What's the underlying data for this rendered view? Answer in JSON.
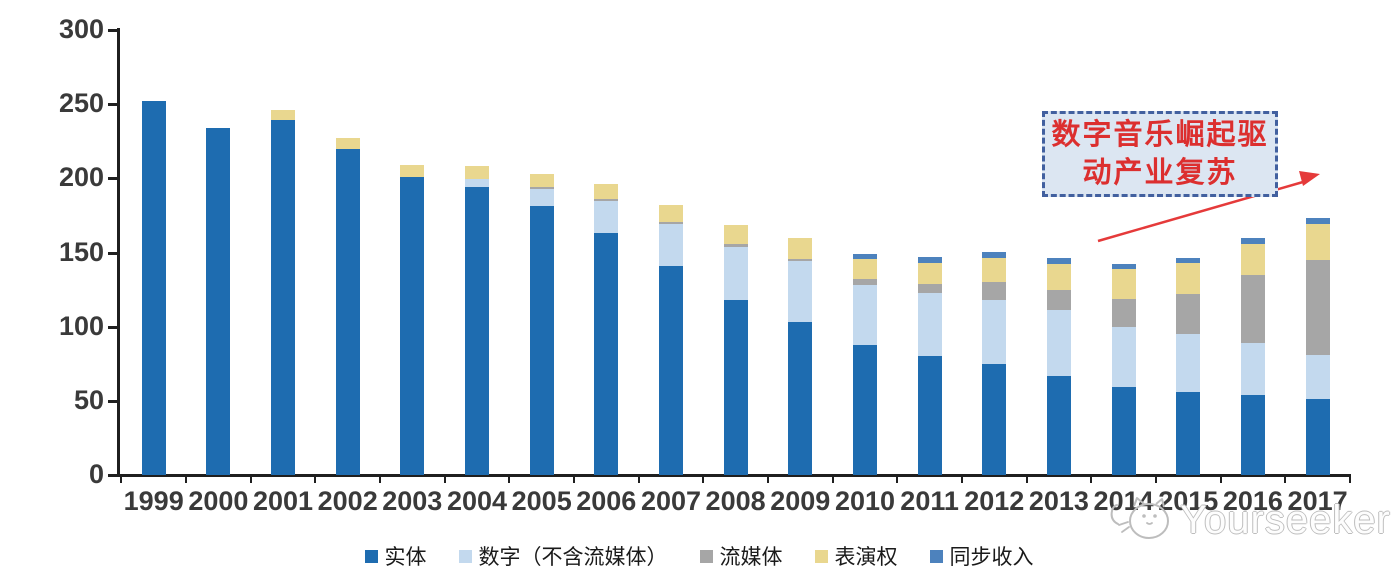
{
  "chart_data": {
    "type": "bar",
    "stacked": true,
    "grid": false,
    "legend_position": "bottom",
    "ylim": [
      0,
      300
    ],
    "yticks": [
      0,
      50,
      100,
      150,
      200,
      250,
      300
    ],
    "categories": [
      "1999",
      "2000",
      "2001",
      "2002",
      "2003",
      "2004",
      "2005",
      "2006",
      "2007",
      "2008",
      "2009",
      "2010",
      "2011",
      "2012",
      "2013",
      "2014",
      "2015",
      "2016",
      "2017"
    ],
    "series": [
      {
        "key": "physical",
        "name": "实体",
        "color": "#1e6cb0",
        "values": [
          252,
          234,
          239,
          220,
          201,
          194,
          181,
          163,
          141,
          118,
          103,
          88,
          80,
          75,
          67,
          59,
          56,
          54,
          51
        ]
      },
      {
        "key": "digital",
        "name": "数字（不含流媒体）",
        "color": "#c3d9ee",
        "values": [
          0,
          0,
          0,
          0,
          0,
          5.5,
          12,
          22,
          28,
          36,
          41,
          40,
          43,
          43,
          44,
          41,
          39,
          35,
          30
        ]
      },
      {
        "key": "streaming",
        "name": "流媒体",
        "color": "#a6a6a6",
        "values": [
          0,
          0,
          0,
          0,
          0,
          0,
          1,
          1,
          1.5,
          1.5,
          1.5,
          4,
          6,
          12,
          14,
          19,
          27,
          46,
          64
        ]
      },
      {
        "key": "performance",
        "name": "表演权",
        "color": "#e9d78f",
        "values": [
          0,
          0,
          7,
          7,
          8,
          9,
          9,
          10,
          11.5,
          13,
          14,
          13.5,
          14,
          16.5,
          17.5,
          20,
          21,
          21,
          24
        ]
      },
      {
        "key": "sync",
        "name": "同步收入",
        "color": "#4d82bd",
        "values": [
          0,
          0,
          0,
          0,
          0,
          0,
          0,
          0,
          0,
          0,
          0,
          3.5,
          4,
          3.5,
          3.5,
          3,
          3.5,
          4,
          4
        ]
      }
    ]
  },
  "annotation": {
    "line1": "数字音乐崛起驱",
    "line2": "动产业复苏",
    "text_color": "#dc2f2f",
    "box_border_color": "#42609f",
    "box_fill_color": "#dce6f2",
    "arrow_color": "#e53a3a"
  },
  "watermark": {
    "text": "Yourseeker"
  }
}
